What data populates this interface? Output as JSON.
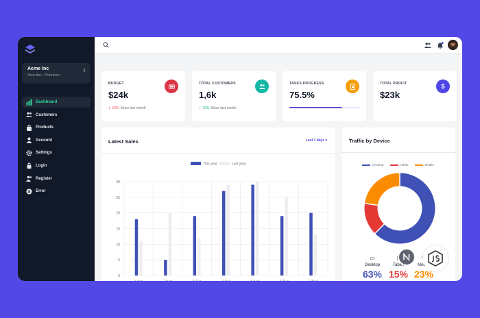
{
  "sidebar": {
    "tenant_name": "Acme Inc",
    "tenant_tier": "Your tier : Premium",
    "items": [
      {
        "label": "Dashboard",
        "icon": "chart-bar-icon",
        "active": true
      },
      {
        "label": "Customers",
        "icon": "users-icon",
        "active": false
      },
      {
        "label": "Products",
        "icon": "shopping-bag-icon",
        "active": false
      },
      {
        "label": "Account",
        "icon": "user-icon",
        "active": false
      },
      {
        "label": "Settings",
        "icon": "gear-icon",
        "active": false
      },
      {
        "label": "Login",
        "icon": "lock-icon",
        "active": false
      },
      {
        "label": "Register",
        "icon": "user-add-icon",
        "active": false
      },
      {
        "label": "Error",
        "icon": "x-circle-icon",
        "active": false
      }
    ]
  },
  "stats": [
    {
      "label": "BUDGET",
      "value": "$24k",
      "delta": "12%",
      "delta_dir": "down",
      "delta_note": "Since last month",
      "icon": "money-icon",
      "icon_color": "#dc3545"
    },
    {
      "label": "TOTAL CUSTOMERS",
      "value": "1,6k",
      "delta": "16%",
      "delta_dir": "up",
      "delta_note": "Since last month",
      "icon": "users-icon",
      "icon_color": "#14b8a6"
    },
    {
      "label": "TASKS PROGRESS",
      "value": "75.5%",
      "progress": 0.755,
      "icon": "clipboard-icon",
      "icon_color": "#f59e0b"
    },
    {
      "label": "TOTAL PROFIT",
      "value": "$23k",
      "icon": "dollar-icon",
      "icon_color": "#4f46e5"
    }
  ],
  "latest_sales": {
    "title": "Latest Sales",
    "range_label": "Last 7 days"
  },
  "traffic": {
    "title": "Traffic by Device",
    "devices": [
      {
        "label": "Desktop",
        "pct": "63%",
        "color": "#3f51b5",
        "icon": "laptop-icon"
      },
      {
        "label": "Tablet",
        "pct": "15%",
        "color": "#e53935",
        "icon": "tablet-icon"
      },
      {
        "label": "Mobile",
        "pct": "23%",
        "color": "#fb8c00",
        "icon": "phone-icon"
      }
    ]
  },
  "chart_data": [
    {
      "type": "bar",
      "categories": [
        "1 Aug",
        "2 Aug",
        "3 Aug",
        "4 Aug",
        "5 Aug",
        "6 Aug",
        "7 Aug"
      ],
      "series": [
        {
          "name": "This year",
          "values": [
            18,
            5,
            19,
            27,
            29,
            19,
            20
          ],
          "color": "#3f51b5"
        },
        {
          "name": "Last year",
          "values": [
            11,
            20,
            12,
            29,
            30,
            25,
            13
          ],
          "color": "#eeeeee"
        }
      ],
      "yticks": [
        0,
        5,
        10,
        15,
        20,
        25,
        30
      ],
      "ylim": [
        0,
        30
      ],
      "grid": true,
      "legend": "top-center"
    },
    {
      "type": "pie",
      "categories": [
        "Desktop",
        "Tablet",
        "Mobile"
      ],
      "values": [
        63,
        15,
        23
      ],
      "colors": [
        "#3f51b5",
        "#e53935",
        "#fb8c00"
      ],
      "legend": "top-center"
    }
  ]
}
